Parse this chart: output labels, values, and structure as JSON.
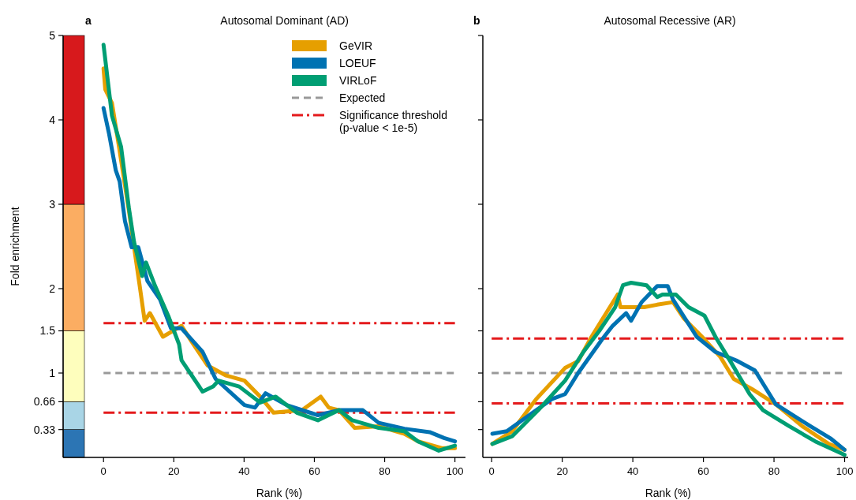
{
  "chart_data": [
    {
      "type": "line",
      "title": "Autosomal Dominant (AD)",
      "xlabel": "Rank (%)",
      "ylabel": "Fold enrichment",
      "annotations": [
        "a"
      ],
      "xlim": [
        -11.5,
        103
      ],
      "xticks": [
        0,
        20,
        40,
        60,
        80,
        100
      ],
      "ylim": [
        0,
        5
      ],
      "yticks": [
        0.33,
        0.66,
        1,
        1.5,
        2,
        3,
        4,
        5
      ],
      "grid": false,
      "legend": "top right",
      "line_style": "solid",
      "marker": "none",
      "bands": [
        {
          "axis": "y",
          "from": 0,
          "to": 0.33,
          "color": "#2c75b4"
        },
        {
          "axis": "y",
          "from": 0.33,
          "to": 0.66,
          "color": "#a9d5e6"
        },
        {
          "axis": "y",
          "from": 0.66,
          "to": 1.5,
          "color": "#fefebd"
        },
        {
          "axis": "y",
          "from": 1.5,
          "to": 3,
          "color": "#fbad62"
        },
        {
          "axis": "y",
          "from": 3,
          "to": 5,
          "color": "#d7191c"
        }
      ],
      "ref_lines": [
        {
          "axis": "y",
          "value": 1,
          "label": "Expected",
          "color": "#999999",
          "line_style": "dashed"
        },
        {
          "axis": "y",
          "value": 1.59,
          "label": "Significance threshold\n(p-value < 1e-5)",
          "color": "#e41a1c",
          "line_style": "dashdot"
        },
        {
          "axis": "y",
          "value": 0.53,
          "label": null,
          "color": "#e41a1c",
          "line_style": "dashdot"
        }
      ],
      "series": [
        {
          "name": "GeVIR",
          "color": "#e69f00",
          "x": [
            0,
            0.5,
            2.4,
            4.3,
            7.2,
            8.7,
            10.2,
            11.7,
            13.2,
            16.9,
            22.2,
            25.1,
            29.6,
            34.9,
            40.1,
            44.6,
            48.4,
            56.5,
            61.8,
            64.1,
            67,
            71.5,
            78.3,
            85.6,
            89.5,
            96.2,
            100
          ],
          "values": [
            4.61,
            4.36,
            4.2,
            3.71,
            2.93,
            2.49,
            2.06,
            1.62,
            1.71,
            1.43,
            1.56,
            1.37,
            1.09,
            0.97,
            0.91,
            0.72,
            0.53,
            0.56,
            0.72,
            0.59,
            0.56,
            0.35,
            0.37,
            0.28,
            0.19,
            0.11,
            0.11
          ]
        },
        {
          "name": "LOEUF",
          "color": "#0072b2",
          "x": [
            0,
            1.6,
            3.5,
            4.6,
            6.1,
            8,
            9.9,
            12.5,
            16.1,
            19.2,
            22.2,
            28.2,
            31.9,
            40.1,
            43.1,
            46.1,
            52.1,
            61,
            67,
            73.8,
            78.3,
            85.6,
            92.8,
            96.9,
            100
          ],
          "values": [
            4.14,
            3.83,
            3.4,
            3.27,
            2.8,
            2.49,
            2.49,
            2.09,
            1.87,
            1.53,
            1.53,
            1.25,
            0.93,
            0.62,
            0.59,
            0.76,
            0.62,
            0.5,
            0.56,
            0.56,
            0.41,
            0.34,
            0.3,
            0.23,
            0.19
          ]
        },
        {
          "name": "VIRLoF",
          "color": "#009e73",
          "x": [
            0,
            2.4,
            5,
            7.2,
            8.7,
            11,
            12.1,
            14.7,
            18.4,
            21.5,
            22.2,
            28.2,
            31.2,
            32.7,
            38.6,
            44.6,
            49,
            55,
            61,
            67,
            70.8,
            78.3,
            85.6,
            89.5,
            95.4,
            100
          ],
          "values": [
            4.89,
            4.05,
            3.68,
            2.96,
            2.55,
            2.15,
            2.31,
            2.03,
            1.68,
            1.34,
            1.15,
            0.78,
            0.84,
            0.91,
            0.84,
            0.65,
            0.72,
            0.53,
            0.44,
            0.56,
            0.44,
            0.35,
            0.31,
            0.19,
            0.08,
            0.14
          ]
        }
      ]
    },
    {
      "type": "line",
      "title": "Autosomal Recessive (AR)",
      "xlabel": "Rank (%)",
      "annotations": [
        "b"
      ],
      "xlim": [
        -2.5,
        101
      ],
      "xticks": [
        0,
        20,
        40,
        60,
        80,
        100
      ],
      "ylim": [
        0,
        5
      ],
      "yticks": [
        0.33,
        0.66,
        1,
        1.5,
        2,
        3,
        4,
        5
      ],
      "tick_labels": "x",
      "grid": false,
      "legend": false,
      "line_style": "solid",
      "marker": "none",
      "ref_lines": [
        {
          "axis": "y",
          "value": 1,
          "label": null,
          "color": "#999999",
          "line_style": "dashed"
        },
        {
          "axis": "y",
          "value": 1.41,
          "label": null,
          "color": "#e41a1c",
          "line_style": "dashdot"
        },
        {
          "axis": "y",
          "value": 0.64,
          "label": null,
          "color": "#e41a1c",
          "line_style": "dashdot"
        }
      ],
      "series": [
        {
          "color": "#e69f00",
          "x": [
            0.2,
            5.8,
            12.6,
            20.8,
            24.5,
            28.3,
            32,
            35.7,
            36.5,
            43.2,
            46.9,
            51.4,
            54.4,
            59.6,
            64.8,
            68.6,
            73.8,
            80.5,
            88,
            95.5,
            100
          ],
          "values": [
            0.16,
            0.31,
            0.69,
            1.06,
            1.14,
            1.43,
            1.68,
            1.93,
            1.78,
            1.78,
            1.81,
            1.84,
            1.65,
            1.43,
            1.19,
            0.93,
            0.81,
            0.63,
            0.37,
            0.16,
            0.09
          ]
        },
        {
          "color": "#0072b2",
          "x": [
            0.2,
            4.3,
            9.6,
            17,
            20.8,
            24.5,
            31.3,
            34.3,
            38.1,
            39.5,
            42.5,
            46.9,
            49.9,
            51.4,
            58.1,
            63.4,
            69.3,
            74.6,
            80.5,
            90.3,
            96.2,
            100
          ],
          "values": [
            0.28,
            0.31,
            0.47,
            0.69,
            0.75,
            1.0,
            1.4,
            1.56,
            1.71,
            1.62,
            1.84,
            2.03,
            2.03,
            1.87,
            1.43,
            1.25,
            1.15,
            1.03,
            0.63,
            0.37,
            0.22,
            0.09
          ]
        },
        {
          "color": "#009e73",
          "x": [
            0.2,
            5.8,
            13.2,
            20.8,
            26,
            30.5,
            35,
            37.2,
            39.5,
            43.9,
            46.9,
            48.4,
            52.2,
            55.8,
            60.3,
            63.4,
            67.9,
            73.1,
            76.9,
            84.3,
            91.7,
            100
          ],
          "values": [
            0.16,
            0.25,
            0.56,
            0.91,
            1.25,
            1.5,
            1.78,
            2.04,
            2.07,
            2.04,
            1.9,
            1.93,
            1.93,
            1.78,
            1.68,
            1.43,
            1.12,
            0.75,
            0.56,
            0.37,
            0.19,
            0.03
          ]
        }
      ]
    }
  ]
}
